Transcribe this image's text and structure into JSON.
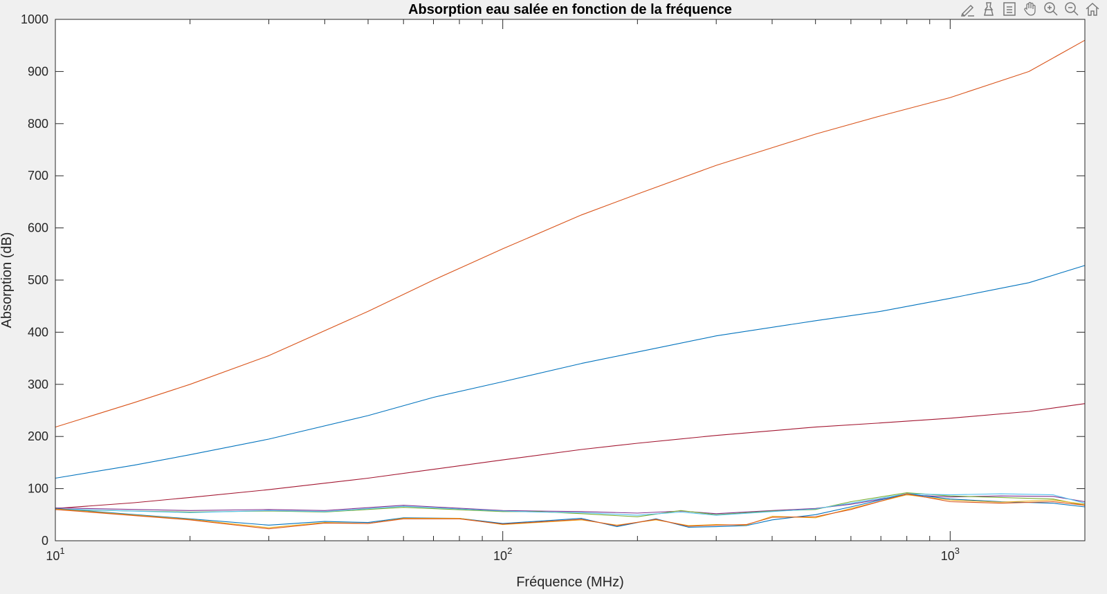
{
  "toolbar": {
    "buttons": [
      {
        "name": "edit-brush-icon"
      },
      {
        "name": "data-cursor-icon"
      },
      {
        "name": "legend-icon"
      },
      {
        "name": "pan-hand-icon"
      },
      {
        "name": "zoom-in-icon"
      },
      {
        "name": "zoom-out-icon"
      },
      {
        "name": "home-icon"
      }
    ]
  },
  "chart_data": {
    "type": "line",
    "title": "Absorption eau salée en fonction de la fréquence",
    "xlabel": "Fréquence (MHz)",
    "ylabel": "Absorption (dB)",
    "xscale": "log",
    "xlim": [
      10,
      2000
    ],
    "ylim": [
      0,
      1000
    ],
    "xticks": [
      {
        "value": 10,
        "base": "10",
        "exp": "1"
      },
      {
        "value": 100,
        "base": "10",
        "exp": "2"
      },
      {
        "value": 1000,
        "base": "10",
        "exp": "3"
      }
    ],
    "yticks": [
      0,
      100,
      200,
      300,
      400,
      500,
      600,
      700,
      800,
      900,
      1000
    ],
    "grid": false,
    "series": [
      {
        "color": "#d95319",
        "x": [
          10,
          15,
          20,
          30,
          50,
          70,
          100,
          150,
          200,
          300,
          500,
          700,
          1000,
          1500,
          2000
        ],
        "values": [
          218,
          265,
          300,
          355,
          440,
          500,
          560,
          625,
          665,
          720,
          780,
          815,
          850,
          900,
          960
        ]
      },
      {
        "color": "#0072bd",
        "x": [
          10,
          15,
          20,
          30,
          50,
          70,
          100,
          150,
          200,
          300,
          500,
          700,
          1000,
          1500,
          2000
        ],
        "values": [
          120,
          145,
          165,
          195,
          240,
          275,
          305,
          340,
          362,
          393,
          422,
          440,
          465,
          495,
          528
        ]
      },
      {
        "color": "#a2142f",
        "x": [
          10,
          15,
          20,
          30,
          50,
          70,
          100,
          150,
          200,
          300,
          500,
          700,
          1000,
          1500,
          2000
        ],
        "values": [
          62,
          73,
          83,
          98,
          120,
          137,
          155,
          175,
          187,
          202,
          218,
          226,
          235,
          248,
          263
        ]
      },
      {
        "color": "#7e2f8e",
        "x": [
          10,
          20,
          30,
          40,
          60,
          100,
          120,
          150,
          200,
          250,
          300,
          400,
          500,
          600,
          800,
          1000,
          1300,
          1700,
          2000
        ],
        "values": [
          63,
          58,
          60,
          58,
          68,
          58,
          57,
          56,
          53,
          57,
          52,
          58,
          62,
          70,
          88,
          84,
          86,
          85,
          75
        ]
      },
      {
        "color": "#77ac30",
        "x": [
          10,
          20,
          30,
          40,
          60,
          100,
          120,
          150,
          200,
          250,
          300,
          400,
          500,
          600,
          800,
          1000,
          1300,
          1700,
          2000
        ],
        "values": [
          60,
          55,
          57,
          55,
          64,
          56,
          56,
          52,
          46,
          58,
          50,
          57,
          60,
          75,
          92,
          86,
          83,
          80,
          68
        ]
      },
      {
        "color": "#4dbeee",
        "x": [
          10,
          20,
          30,
          40,
          60,
          100,
          120,
          150,
          200,
          250,
          300,
          400,
          500,
          600,
          800,
          1000,
          1300,
          1700,
          2000
        ],
        "values": [
          61,
          54,
          58,
          56,
          66,
          57,
          55,
          54,
          49,
          55,
          49,
          56,
          61,
          72,
          90,
          88,
          90,
          88,
          72
        ]
      },
      {
        "color": "#0072bd",
        "x": [
          10,
          20,
          30,
          40,
          50,
          60,
          80,
          100,
          150,
          180,
          220,
          260,
          300,
          350,
          400,
          500,
          600,
          800,
          1000,
          1300,
          1700,
          2000
        ],
        "values": [
          62,
          42,
          30,
          37,
          35,
          44,
          43,
          33,
          43,
          27,
          42,
          26,
          27,
          29,
          40,
          50,
          65,
          90,
          80,
          75,
          72,
          65
        ]
      },
      {
        "color": "#edb120",
        "x": [
          10,
          20,
          30,
          40,
          50,
          60,
          80,
          100,
          150,
          180,
          220,
          260,
          300,
          350,
          400,
          500,
          600,
          800,
          1000,
          1300,
          1700,
          2000
        ],
        "values": [
          61,
          41,
          25,
          35,
          33,
          43,
          43,
          31,
          40,
          30,
          40,
          29,
          31,
          30,
          47,
          44,
          62,
          88,
          78,
          74,
          78,
          70
        ]
      },
      {
        "color": "#d95319",
        "x": [
          10,
          20,
          30,
          40,
          50,
          60,
          80,
          100,
          150,
          180,
          220,
          260,
          300,
          350,
          400,
          500,
          600,
          800,
          1000,
          1300,
          1700,
          2000
        ],
        "values": [
          60,
          40,
          23,
          34,
          33,
          42,
          42,
          32,
          41,
          29,
          41,
          28,
          30,
          31,
          45,
          46,
          60,
          90,
          75,
          72,
          75,
          68
        ]
      }
    ]
  }
}
